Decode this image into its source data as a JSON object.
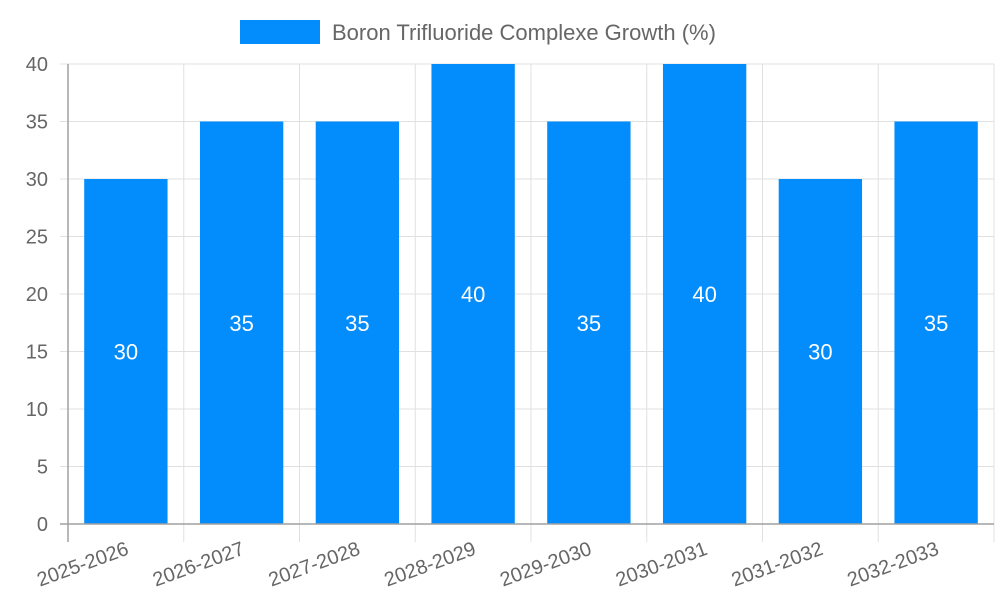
{
  "chart_data": {
    "type": "bar",
    "title": "",
    "categories": [
      "2025-2026",
      "2026-2027",
      "2027-2028",
      "2028-2029",
      "2029-2030",
      "2030-2031",
      "2031-2032",
      "2032-2033"
    ],
    "series": [
      {
        "name": "Boron Trifluoride Complexe Growth (%)",
        "values": [
          30,
          35,
          35,
          40,
          35,
          40,
          30,
          35
        ],
        "color": "#038cfc"
      }
    ],
    "xlabel": "",
    "ylabel": "",
    "ylim": [
      0,
      40
    ],
    "yticks": [
      0,
      5,
      10,
      15,
      20,
      25,
      30,
      35,
      40
    ],
    "grid": true,
    "legend_position": "top",
    "data_labels": true
  },
  "legend": {
    "label": "Boron Trifluoride Complexe Growth (%)",
    "color": "#038cfc"
  },
  "colors": {
    "bar": "#038cfc",
    "grid": "#e0e0e0",
    "axis": "#a0a0a0",
    "text": "#666666"
  }
}
